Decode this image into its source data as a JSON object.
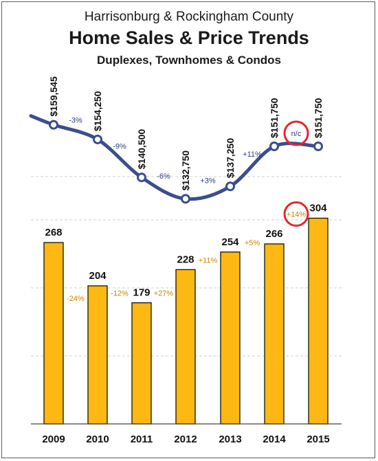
{
  "title_line1": "Harrisonburg & Rockingham County",
  "title_line2": "Home Sales & Price Trends",
  "title_line3": "Duplexes, Townhomes & Condos",
  "colors": {
    "bar": "#FDB813",
    "bar_stroke": "#111111",
    "line": "#3B4E8C",
    "price_change_text": "#2E3F78",
    "sales_change_text": "#C98400",
    "highlight_circle": "#E3262E",
    "grid": "#D0D0D0"
  },
  "chart_data": [
    {
      "type": "line",
      "categories": [
        "2009",
        "2010",
        "2011",
        "2012",
        "2013",
        "2014",
        "2015"
      ],
      "values": [
        159545,
        154250,
        140500,
        132750,
        137250,
        151750,
        151750
      ],
      "value_labels": [
        "$159,545",
        "$154,250",
        "$140,500",
        "$132,750",
        "$137,250",
        "$151,750",
        "$151,750"
      ],
      "change_labels": [
        "-3%",
        "-9%",
        "-6%",
        "+3%",
        "+11%",
        "n/c"
      ],
      "highlighted_change": "n/c",
      "grid": true
    },
    {
      "type": "bar",
      "categories": [
        "2009",
        "2010",
        "2011",
        "2012",
        "2013",
        "2014",
        "2015"
      ],
      "values": [
        268,
        204,
        179,
        228,
        254,
        266,
        304
      ],
      "value_labels": [
        "268",
        "204",
        "179",
        "228",
        "254",
        "266",
        "304"
      ],
      "change_labels": [
        "-24%",
        "-12%",
        "+27%",
        "+11%",
        "+5%",
        "+14%"
      ],
      "highlighted_change": "+14%",
      "ylim": [
        0,
        338
      ],
      "grid": true
    }
  ]
}
